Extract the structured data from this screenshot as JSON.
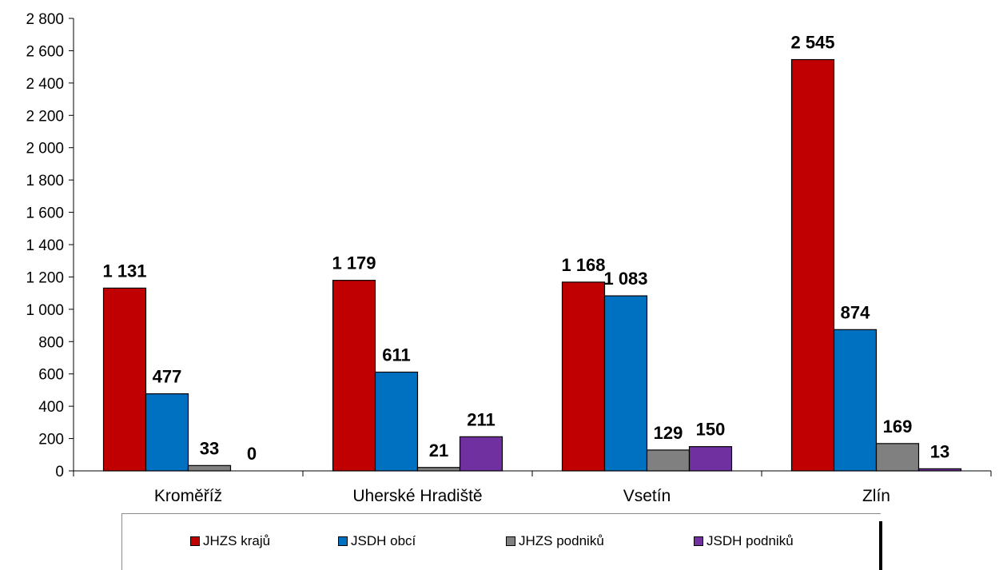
{
  "chart_data": {
    "type": "bar",
    "categories": [
      "Kroměříž",
      "Uherské Hradiště",
      "Vsetín",
      "Zlín"
    ],
    "series": [
      {
        "name": "JHZS krajů",
        "color": "#c00000",
        "values": [
          1131,
          1179,
          1168,
          2545
        ],
        "labels": [
          "1 131",
          "1 179",
          "1 168",
          "2 545"
        ]
      },
      {
        "name": "JSDH obcí",
        "color": "#0070c0",
        "values": [
          477,
          611,
          1083,
          874
        ],
        "labels": [
          "477",
          "611",
          "1 083",
          "874"
        ]
      },
      {
        "name": "JHZS podniků",
        "color": "#808080",
        "values": [
          33,
          21,
          129,
          169
        ],
        "labels": [
          "33",
          "21",
          "129",
          "169"
        ]
      },
      {
        "name": "JSDH podniků",
        "color": "#7030a0",
        "values": [
          0,
          211,
          150,
          13
        ],
        "labels": [
          "0",
          "211",
          "150",
          "13"
        ]
      }
    ],
    "ylim": [
      0,
      2800
    ],
    "yticks": [
      0,
      200,
      400,
      600,
      800,
      1000,
      1200,
      1400,
      1600,
      1800,
      2000,
      2200,
      2400,
      2600,
      2800
    ],
    "ytick_labels": [
      "0",
      "200",
      "400",
      "600",
      "800",
      "1 000",
      "1 200",
      "1 400",
      "1 600",
      "1 800",
      "2 000",
      "2 200",
      "2 400",
      "2 600",
      "2 800"
    ],
    "grid": false,
    "legend_position": "bottom",
    "title": "",
    "xlabel": "",
    "ylabel": ""
  }
}
